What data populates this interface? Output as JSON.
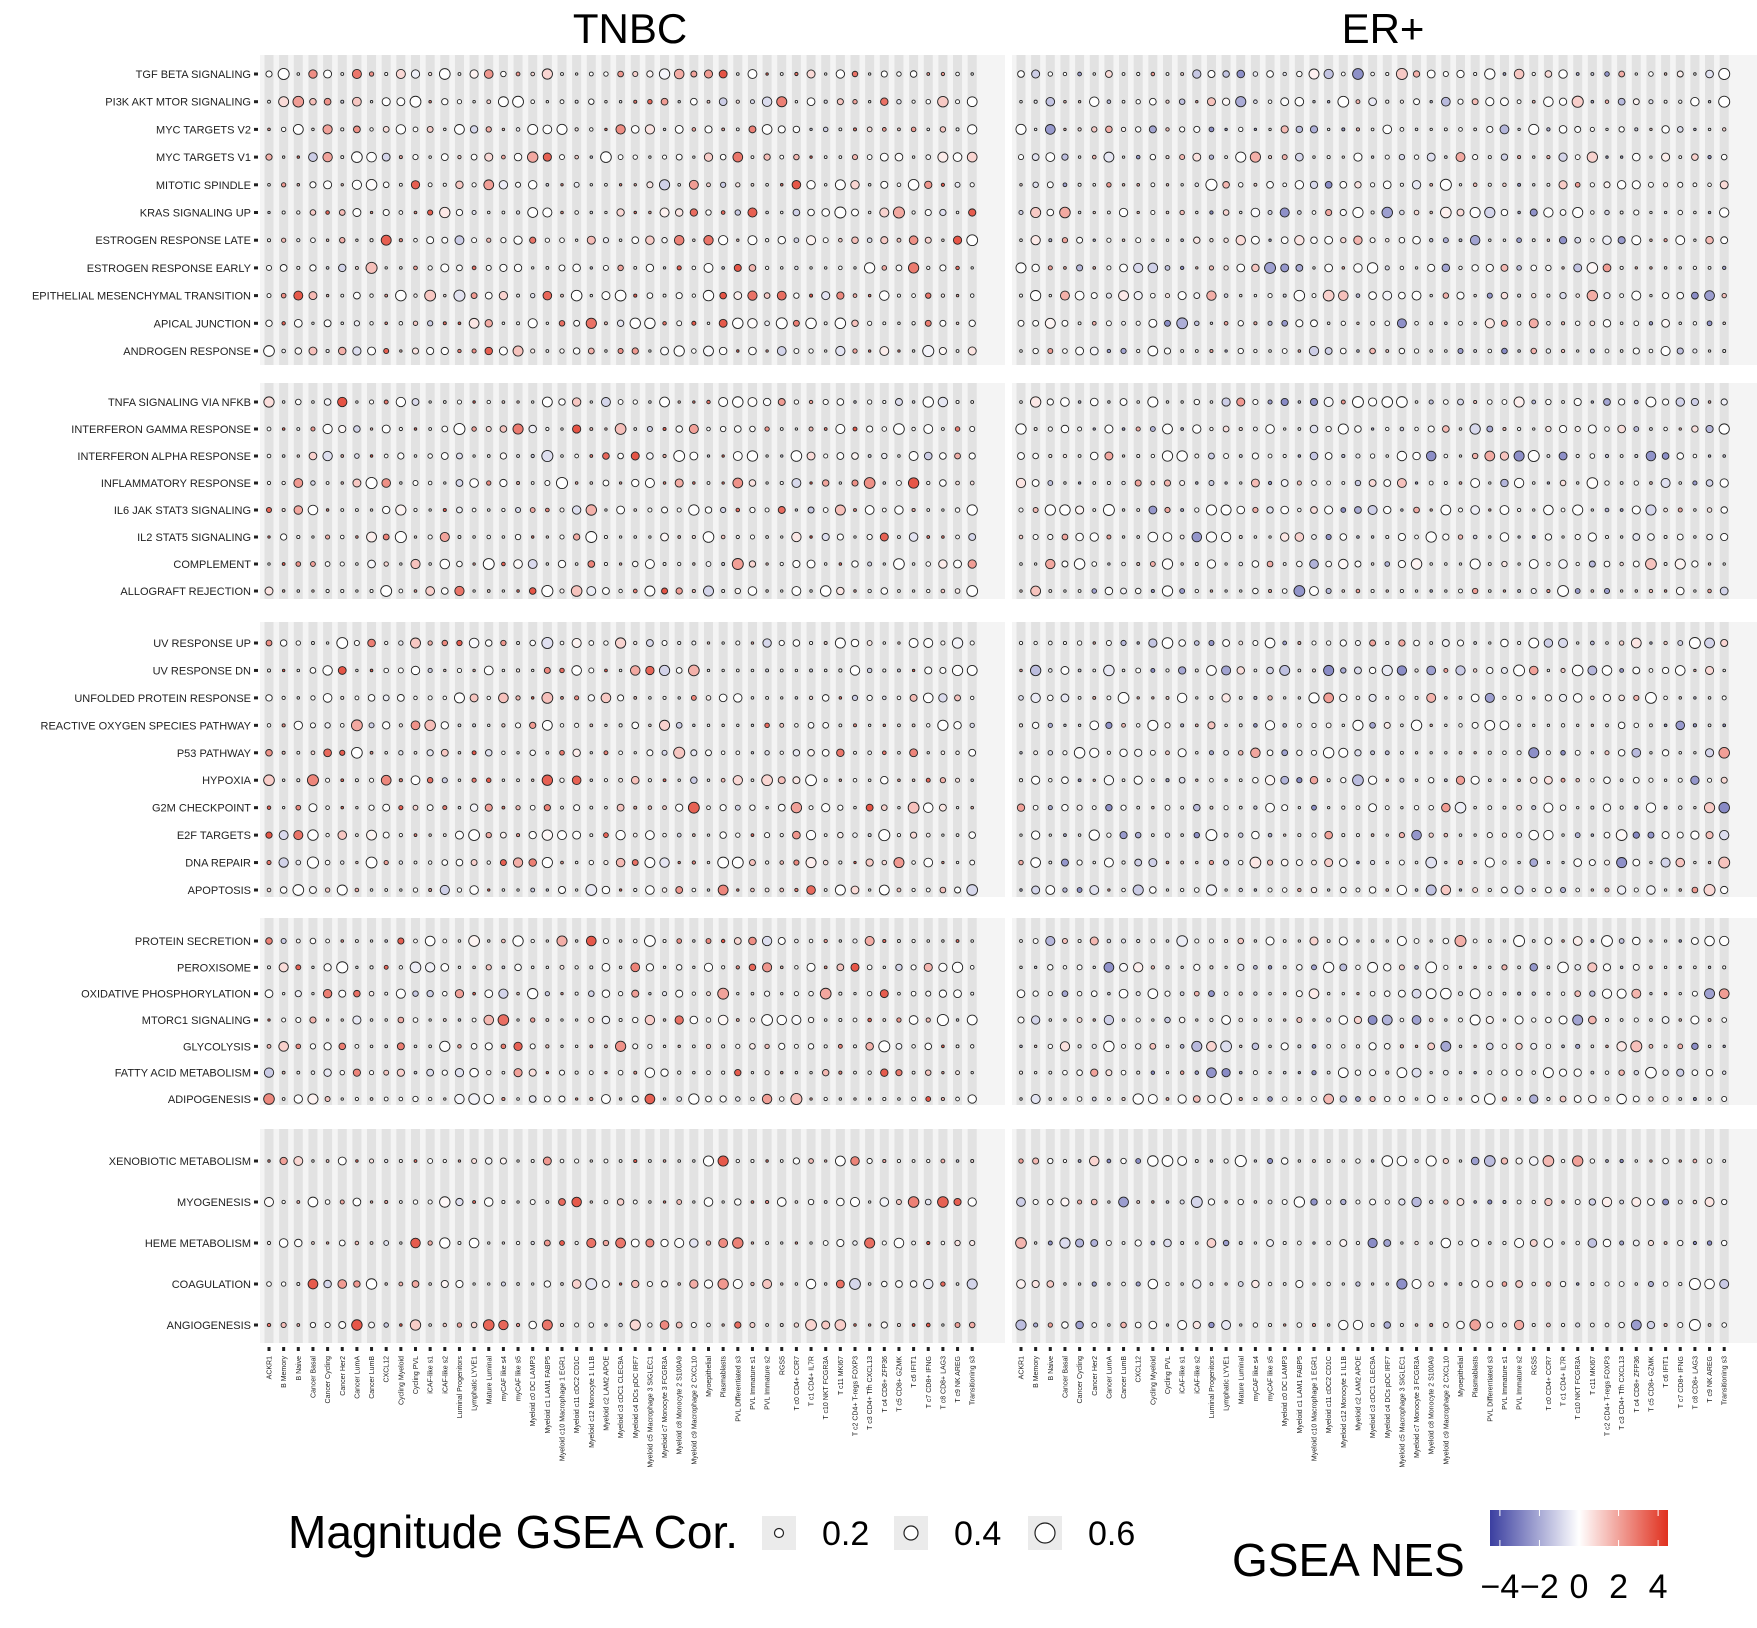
{
  "chart_data": {
    "type": "dot",
    "panels": [
      "TNBC",
      "ER+"
    ],
    "pathway_groups": [
      [
        "TGF BETA SIGNALING",
        "PI3K AKT MTOR SIGNALING",
        "MYC TARGETS V2",
        "MYC TARGETS V1",
        "MITOTIC SPINDLE",
        "KRAS SIGNALING UP",
        "ESTROGEN RESPONSE LATE",
        "ESTROGEN RESPONSE EARLY",
        "EPITHELIAL MESENCHYMAL TRANSITION",
        "APICAL JUNCTION",
        "ANDROGEN RESPONSE"
      ],
      [
        "TNFA SIGNALING VIA NFKB",
        "INTERFERON GAMMA RESPONSE",
        "INTERFERON ALPHA RESPONSE",
        "INFLAMMATORY RESPONSE",
        "IL6 JAK STAT3 SIGNALING",
        "IL2 STAT5 SIGNALING",
        "COMPLEMENT",
        "ALLOGRAFT REJECTION"
      ],
      [
        "UV RESPONSE UP",
        "UV RESPONSE DN",
        "UNFOLDED PROTEIN RESPONSE",
        "REACTIVE OXYGEN SPECIES PATHWAY",
        "P53 PATHWAY",
        "HYPOXIA",
        "G2M CHECKPOINT",
        "E2F TARGETS",
        "DNA REPAIR",
        "APOPTOSIS"
      ],
      [
        "PROTEIN SECRETION",
        "PEROXISOME",
        "OXIDATIVE PHOSPHORYLATION",
        "MTORC1 SIGNALING",
        "GLYCOLYSIS",
        "FATTY ACID METABOLISM",
        "ADIPOGENESIS"
      ],
      [
        "XENOBIOTIC METABOLISM",
        "MYOGENESIS",
        "HEME METABOLISM",
        "COAGULATION",
        "ANGIOGENESIS"
      ]
    ],
    "cell_types": [
      "ACKR1",
      "B Memory",
      "B Naive",
      "Cancer Basal",
      "Cancer Cycling",
      "Cancer Her2",
      "Cancer LumA",
      "Cancer LumB",
      "CXCL12",
      "Cycling Myeloid",
      "Cycling PVL",
      "iCAF-like s1",
      "iCAF-like s2",
      "Luminal Progenitors",
      "Lymphatic LYVE1",
      "Mature Luminal",
      "myCAF like s4",
      "myCAF like s5",
      "Myeloid c0 DC LAMP3",
      "Myeloid c1 LAM1 FABP5",
      "Myeloid c10 Macrophage 1 EGR1",
      "Myeloid c11 cDC2 CD1C",
      "Myeloid c12 Monocyte 1 IL1B",
      "Myeloid c2 LAM2 APOE",
      "Myeloid c3 cDC1 CLEC9A",
      "Myeloid c4 DCs pDC IRF7",
      "Myeloid c5 Macrophage 3 SIGLEC1",
      "Myeloid c7 Monocyte 3 FCGR3A",
      "Myeloid c8 Monocyte 2 S100A9",
      "Myeloid c9 Macrophage 2 CXCL10",
      "Myoepithelial",
      "Plasmablasts",
      "PVL Differentiated s3",
      "PVL Immature s1",
      "PVL Immature s2",
      "RGS5",
      "T c0 CD4+ CCR7",
      "T c1 CD4+ IL7R",
      "T c10 NKT FCGR3A",
      "T c11 MKI67",
      "T c2 CD4+ T-regs FOXP3",
      "T c3 CD4+ Tfh CXCL13",
      "T c4 CD8+ ZFP36",
      "T c5 CD8+ GZMK",
      "T c6 IFIT1",
      "T c7 CD8+ IFNG",
      "T c8 CD8+ LAG3",
      "T c9 NK AREG",
      "Transitioning s3"
    ],
    "size_legend": {
      "title": "Magnitude GSEA Cor.",
      "values": [
        "0.2",
        "0.4",
        "0.6"
      ]
    },
    "color_legend": {
      "title": "GSEA NES",
      "ticks": [
        "−4",
        "−2",
        "0",
        "2",
        "4"
      ],
      "range": [
        -4.5,
        4.5
      ],
      "low_color": "#3b3fa0",
      "mid_color": "#ffffff",
      "high_color": "#e0301e"
    }
  }
}
